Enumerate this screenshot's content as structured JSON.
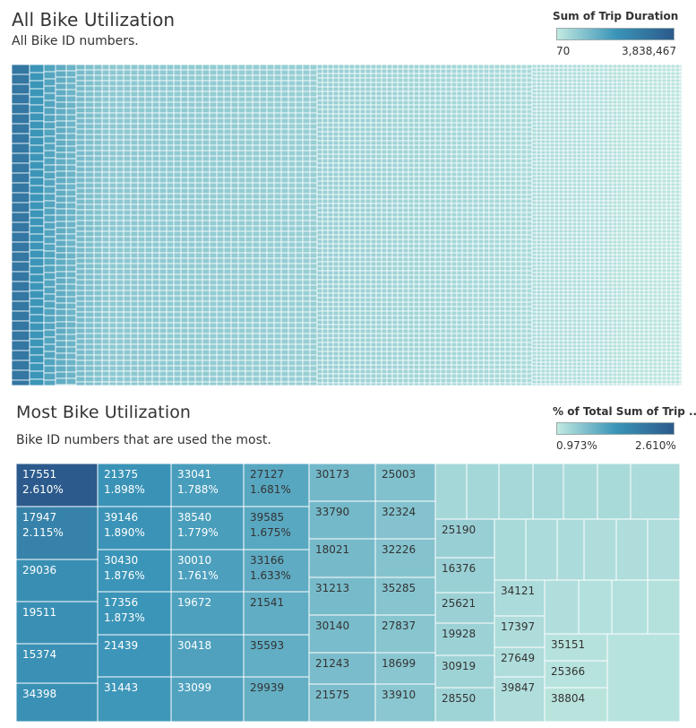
{
  "top_chart": {
    "title": "All Bike Utilization",
    "subtitle": "All Bike ID numbers.",
    "legend_title": "Sum of Trip Duration",
    "legend_min": "70",
    "legend_max": "3,838,467"
  },
  "bottom_chart": {
    "title": "Most Bike Utilization",
    "subtitle": "Bike ID numbers that are used the most.",
    "legend_title": "% of Total Sum of Trip ..",
    "legend_min": "0.973%",
    "legend_max": "2.610%"
  },
  "colors": {
    "scale_low": "#c1e9e1",
    "scale_mid": "#3b95b8",
    "scale_high": "#2c5a8c",
    "border": "#ffffff"
  },
  "chart_data": [
    {
      "type": "heatmap",
      "subtype": "treemap",
      "title": "All Bike Utilization",
      "subtitle": "All Bike ID numbers.",
      "measure": "Sum of Trip Duration",
      "color_range": [
        70,
        3838467
      ],
      "cells": "unlabeled (all bike IDs)"
    },
    {
      "type": "heatmap",
      "subtype": "treemap",
      "title": "Most Bike Utilization",
      "subtitle": "Bike ID numbers that are used the most.",
      "measure": "% of Total Sum of Trip ..",
      "color_range": [
        0.973,
        2.61
      ],
      "columns": [
        [
          {
            "id": "17551",
            "pct": 2.61,
            "show": true
          },
          {
            "id": "17947",
            "pct": 2.115,
            "show": true
          },
          {
            "id": "29036",
            "pct": 1.95
          },
          {
            "id": "19511",
            "pct": 1.94
          },
          {
            "id": "15374",
            "pct": 1.93
          },
          {
            "id": "34398",
            "pct": 1.92
          }
        ],
        [
          {
            "id": "21375",
            "pct": 1.898,
            "show": true
          },
          {
            "id": "39146",
            "pct": 1.89,
            "show": true
          },
          {
            "id": "30430",
            "pct": 1.876,
            "show": true
          },
          {
            "id": "17356",
            "pct": 1.873,
            "show": true
          },
          {
            "id": "21439",
            "pct": 1.86
          },
          {
            "id": "31443",
            "pct": 1.85
          }
        ],
        [
          {
            "id": "33041",
            "pct": 1.788,
            "show": true
          },
          {
            "id": "38540",
            "pct": 1.779,
            "show": true
          },
          {
            "id": "30010",
            "pct": 1.761,
            "show": true
          },
          {
            "id": "19672",
            "pct": 1.75
          },
          {
            "id": "30418",
            "pct": 1.74
          },
          {
            "id": "33099",
            "pct": 1.73
          }
        ],
        [
          {
            "id": "27127",
            "pct": 1.681,
            "show": true
          },
          {
            "id": "39585",
            "pct": 1.675,
            "show": true
          },
          {
            "id": "33166",
            "pct": 1.633,
            "show": true
          },
          {
            "id": "21541",
            "pct": 1.62
          },
          {
            "id": "35593",
            "pct": 1.61
          },
          {
            "id": "29939",
            "pct": 1.6
          }
        ],
        [
          {
            "id": "30173",
            "pct": 1.5
          },
          {
            "id": "33790",
            "pct": 1.49
          },
          {
            "id": "18021",
            "pct": 1.48
          },
          {
            "id": "31213",
            "pct": 1.47
          },
          {
            "id": "30140",
            "pct": 1.46
          },
          {
            "id": "21243",
            "pct": 1.45
          },
          {
            "id": "21575",
            "pct": 1.44
          }
        ],
        [
          {
            "id": "25003",
            "pct": 1.4
          },
          {
            "id": "32324",
            "pct": 1.39
          },
          {
            "id": "32226",
            "pct": 1.38
          },
          {
            "id": "35285",
            "pct": 1.37
          },
          {
            "id": "27837",
            "pct": 1.36
          },
          {
            "id": "18699",
            "pct": 1.35
          },
          {
            "id": "33910",
            "pct": 1.34
          }
        ],
        [
          {
            "id": "25190",
            "pct": 1.25
          },
          {
            "id": "16376",
            "pct": 1.24
          },
          {
            "id": "25621",
            "pct": 1.23
          },
          {
            "id": "19928",
            "pct": 1.22
          },
          {
            "id": "30919",
            "pct": 1.21
          },
          {
            "id": "28550",
            "pct": 1.2
          }
        ],
        [
          {
            "id": "34121",
            "pct": 1.12
          },
          {
            "id": "17397",
            "pct": 1.11
          },
          {
            "id": "27649",
            "pct": 1.1
          },
          {
            "id": "39847",
            "pct": 1.09
          }
        ],
        [
          {
            "id": "35151",
            "pct": 1.05
          },
          {
            "id": "25366",
            "pct": 1.04
          },
          {
            "id": "38804",
            "pct": 1.03
          }
        ]
      ]
    }
  ]
}
